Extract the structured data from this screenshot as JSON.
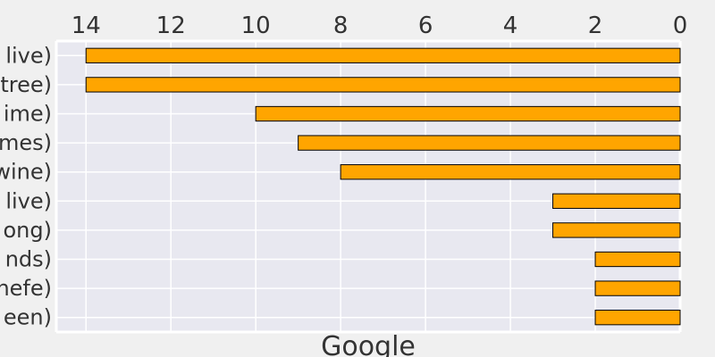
{
  "chart_data": {
    "type": "bar",
    "orientation": "horizontal",
    "x_axis_reversed": true,
    "x_axis_position": "top",
    "categories": [
      "live)",
      "tree)",
      "ime)",
      "mes)",
      "wine)",
      "live)",
      "ong)",
      "nds)",
      "hefe)",
      "een)"
    ],
    "values": [
      14,
      14,
      10,
      9,
      8,
      3,
      3,
      2,
      2,
      2
    ],
    "xlabel": "Google",
    "ylabel": "",
    "xlim": [
      0,
      14.7
    ],
    "xticks": [
      "14",
      "12",
      "10",
      "8",
      "6",
      "4",
      "2",
      "0"
    ],
    "grid": true,
    "bar_color": "#ffa500",
    "bar_edge_color": "#000000",
    "plot_background": "#e8e8f0",
    "grid_color": "#ffffff"
  }
}
